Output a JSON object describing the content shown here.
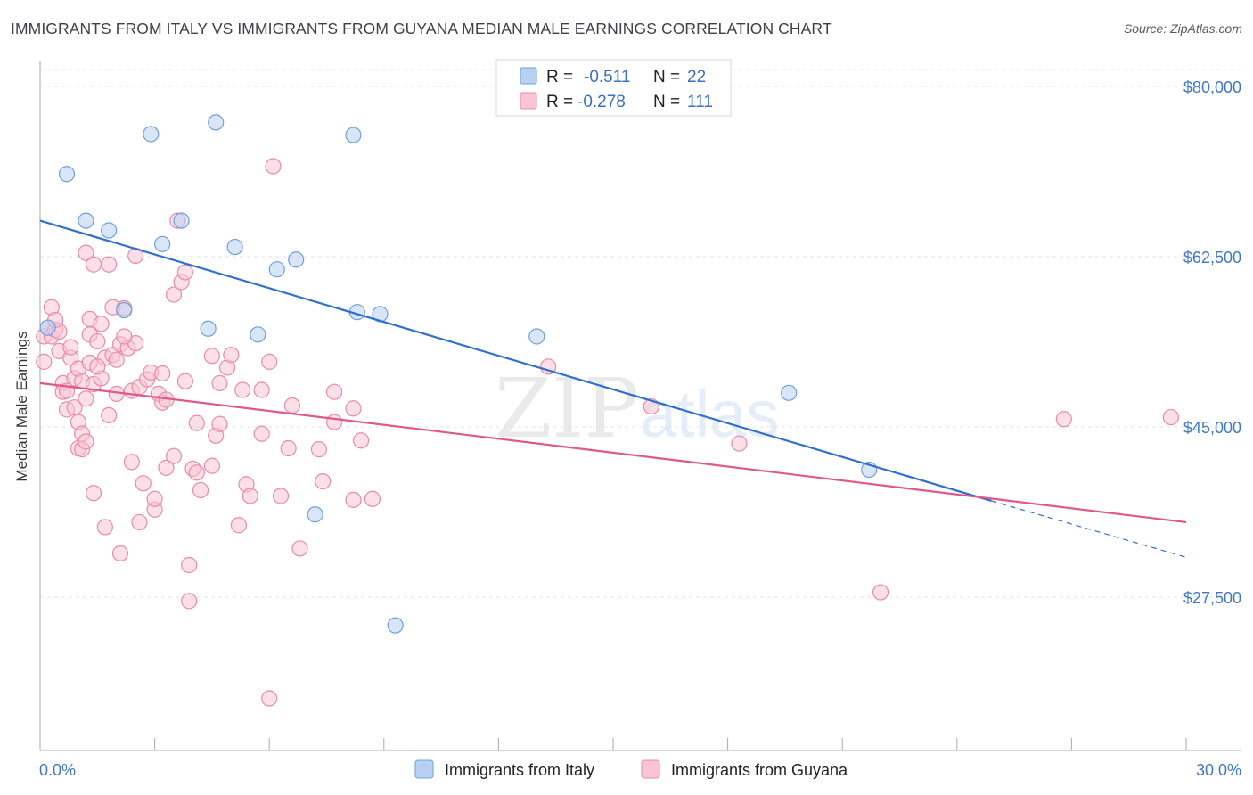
{
  "header": {
    "title": "IMMIGRANTS FROM ITALY VS IMMIGRANTS FROM GUYANA MEDIAN MALE EARNINGS CORRELATION CHART",
    "source": "Source: ZipAtlas.com"
  },
  "watermark": {
    "zip": "ZIP",
    "atlas": "atlas"
  },
  "colors": {
    "italy_fill": "#b8d1f3",
    "italy_stroke": "#6f9fdd",
    "italy_line": "#2f6fd0",
    "guyana_fill": "#f9c4d4",
    "guyana_stroke": "#ea8aab",
    "guyana_line": "#e0588a",
    "tick": "#3f78c7",
    "grid": "#e3e3e3"
  },
  "legend_box": {
    "rows": [
      {
        "r_label": "R =",
        "r_value": "-0.511",
        "n_label": "N =",
        "n_value": "22"
      },
      {
        "r_label": "R =",
        "r_value": "-0.278",
        "n_label": "N =",
        "n_value": "111"
      }
    ]
  },
  "chart_data": {
    "type": "scatter",
    "title": "IMMIGRANTS FROM ITALY VS IMMIGRANTS FROM GUYANA MEDIAN MALE EARNINGS CORRELATION CHART",
    "xlabel": "",
    "ylabel": "Median Male Earnings",
    "xlim": [
      0,
      30
    ],
    "ylim": [
      11000,
      84000
    ],
    "x_tick_labels": [
      "0.0%",
      "30.0%"
    ],
    "y_ticks": [
      80000,
      62500,
      45000,
      27500
    ],
    "y_tick_labels": [
      "$80,000",
      "$62,500",
      "$45,000",
      "$27,500"
    ],
    "legend": [
      "Immigrants from Italy",
      "Immigrants from Guyana"
    ],
    "series": [
      {
        "name": "Immigrants from Italy",
        "r": -0.511,
        "n": 22,
        "trend": {
          "x0": 0,
          "y0": 66200,
          "x1": 24.9,
          "y1": 37400,
          "dash_to_x": 30,
          "dash_to_y": 31600
        },
        "points": [
          {
            "x": 0.2,
            "y": 55200
          },
          {
            "x": 0.7,
            "y": 71000
          },
          {
            "x": 1.2,
            "y": 66200
          },
          {
            "x": 1.8,
            "y": 65200
          },
          {
            "x": 2.2,
            "y": 57000
          },
          {
            "x": 2.9,
            "y": 75100
          },
          {
            "x": 3.2,
            "y": 63800
          },
          {
            "x": 3.7,
            "y": 66200
          },
          {
            "x": 4.4,
            "y": 55100
          },
          {
            "x": 4.6,
            "y": 76300
          },
          {
            "x": 5.1,
            "y": 63500
          },
          {
            "x": 5.7,
            "y": 54500
          },
          {
            "x": 6.2,
            "y": 61200
          },
          {
            "x": 6.7,
            "y": 62200
          },
          {
            "x": 7.2,
            "y": 36000
          },
          {
            "x": 8.2,
            "y": 75000
          },
          {
            "x": 8.3,
            "y": 56800
          },
          {
            "x": 8.9,
            "y": 56600
          },
          {
            "x": 9.3,
            "y": 24600
          },
          {
            "x": 13.0,
            "y": 54300
          },
          {
            "x": 19.6,
            "y": 48500
          },
          {
            "x": 21.7,
            "y": 40600
          }
        ]
      },
      {
        "name": "Immigrants from Guyana",
        "r": -0.278,
        "n": 111,
        "trend": {
          "x0": 0,
          "y0": 49500,
          "x1": 30,
          "y1": 35200
        },
        "points": [
          {
            "x": 0.1,
            "y": 54300
          },
          {
            "x": 0.1,
            "y": 51700
          },
          {
            "x": 0.2,
            "y": 55200
          },
          {
            "x": 0.3,
            "y": 57300
          },
          {
            "x": 0.3,
            "y": 54300
          },
          {
            "x": 0.4,
            "y": 55000
          },
          {
            "x": 0.5,
            "y": 52800
          },
          {
            "x": 0.5,
            "y": 54800
          },
          {
            "x": 0.6,
            "y": 49500
          },
          {
            "x": 0.6,
            "y": 48600
          },
          {
            "x": 0.7,
            "y": 48700
          },
          {
            "x": 0.7,
            "y": 46800
          },
          {
            "x": 0.8,
            "y": 52100
          },
          {
            "x": 0.8,
            "y": 53200
          },
          {
            "x": 0.9,
            "y": 50000
          },
          {
            "x": 0.9,
            "y": 47000
          },
          {
            "x": 1.0,
            "y": 51000
          },
          {
            "x": 1.0,
            "y": 42800
          },
          {
            "x": 1.0,
            "y": 45500
          },
          {
            "x": 1.1,
            "y": 49700
          },
          {
            "x": 1.1,
            "y": 44300
          },
          {
            "x": 1.1,
            "y": 42700
          },
          {
            "x": 1.2,
            "y": 43500
          },
          {
            "x": 1.2,
            "y": 47900
          },
          {
            "x": 1.2,
            "y": 62900
          },
          {
            "x": 1.3,
            "y": 51600
          },
          {
            "x": 1.3,
            "y": 54500
          },
          {
            "x": 1.3,
            "y": 56100
          },
          {
            "x": 1.4,
            "y": 61700
          },
          {
            "x": 1.4,
            "y": 49400
          },
          {
            "x": 1.4,
            "y": 38200
          },
          {
            "x": 1.5,
            "y": 53800
          },
          {
            "x": 1.6,
            "y": 50000
          },
          {
            "x": 1.6,
            "y": 55600
          },
          {
            "x": 1.7,
            "y": 52100
          },
          {
            "x": 1.7,
            "y": 34700
          },
          {
            "x": 1.8,
            "y": 61700
          },
          {
            "x": 1.8,
            "y": 46200
          },
          {
            "x": 1.9,
            "y": 52400
          },
          {
            "x": 1.9,
            "y": 57300
          },
          {
            "x": 2.0,
            "y": 48400
          },
          {
            "x": 2.0,
            "y": 51900
          },
          {
            "x": 2.1,
            "y": 53500
          },
          {
            "x": 2.1,
            "y": 32000
          },
          {
            "x": 2.2,
            "y": 57200
          },
          {
            "x": 2.3,
            "y": 53100
          },
          {
            "x": 2.4,
            "y": 48700
          },
          {
            "x": 2.4,
            "y": 41400
          },
          {
            "x": 2.5,
            "y": 62600
          },
          {
            "x": 2.5,
            "y": 53600
          },
          {
            "x": 2.6,
            "y": 35200
          },
          {
            "x": 2.6,
            "y": 49100
          },
          {
            "x": 2.7,
            "y": 39200
          },
          {
            "x": 2.8,
            "y": 49900
          },
          {
            "x": 2.9,
            "y": 50600
          },
          {
            "x": 3.0,
            "y": 36500
          },
          {
            "x": 3.0,
            "y": 37600
          },
          {
            "x": 3.1,
            "y": 48400
          },
          {
            "x": 3.2,
            "y": 47500
          },
          {
            "x": 3.2,
            "y": 50500
          },
          {
            "x": 3.3,
            "y": 47800
          },
          {
            "x": 3.3,
            "y": 40800
          },
          {
            "x": 3.5,
            "y": 42000
          },
          {
            "x": 3.5,
            "y": 58600
          },
          {
            "x": 3.6,
            "y": 66200
          },
          {
            "x": 3.7,
            "y": 59900
          },
          {
            "x": 3.8,
            "y": 60900
          },
          {
            "x": 3.8,
            "y": 49700
          },
          {
            "x": 3.9,
            "y": 30800
          },
          {
            "x": 3.9,
            "y": 27100
          },
          {
            "x": 4.0,
            "y": 40700
          },
          {
            "x": 4.1,
            "y": 40300
          },
          {
            "x": 4.1,
            "y": 45400
          },
          {
            "x": 4.2,
            "y": 38500
          },
          {
            "x": 4.5,
            "y": 41000
          },
          {
            "x": 4.5,
            "y": 52300
          },
          {
            "x": 4.6,
            "y": 44100
          },
          {
            "x": 4.7,
            "y": 49500
          },
          {
            "x": 4.7,
            "y": 45300
          },
          {
            "x": 4.9,
            "y": 51100
          },
          {
            "x": 5.0,
            "y": 52400
          },
          {
            "x": 5.2,
            "y": 34900
          },
          {
            "x": 5.3,
            "y": 48800
          },
          {
            "x": 5.4,
            "y": 39100
          },
          {
            "x": 5.5,
            "y": 37900
          },
          {
            "x": 5.8,
            "y": 44300
          },
          {
            "x": 5.8,
            "y": 48800
          },
          {
            "x": 6.0,
            "y": 17100
          },
          {
            "x": 6.0,
            "y": 51700
          },
          {
            "x": 6.1,
            "y": 71800
          },
          {
            "x": 6.3,
            "y": 37900
          },
          {
            "x": 6.5,
            "y": 42800
          },
          {
            "x": 6.6,
            "y": 47200
          },
          {
            "x": 6.8,
            "y": 32500
          },
          {
            "x": 7.3,
            "y": 42700
          },
          {
            "x": 7.4,
            "y": 39400
          },
          {
            "x": 7.7,
            "y": 48600
          },
          {
            "x": 7.7,
            "y": 45500
          },
          {
            "x": 8.2,
            "y": 46900
          },
          {
            "x": 8.2,
            "y": 37500
          },
          {
            "x": 8.4,
            "y": 43600
          },
          {
            "x": 8.7,
            "y": 37600
          },
          {
            "x": 13.3,
            "y": 51200
          },
          {
            "x": 16.0,
            "y": 47100
          },
          {
            "x": 18.3,
            "y": 43300
          },
          {
            "x": 22.0,
            "y": 28000
          },
          {
            "x": 26.8,
            "y": 45800
          },
          {
            "x": 29.6,
            "y": 46000
          },
          {
            "x": 2.2,
            "y": 54300
          },
          {
            "x": 0.4,
            "y": 56000
          },
          {
            "x": 1.5,
            "y": 51200
          }
        ]
      }
    ]
  }
}
